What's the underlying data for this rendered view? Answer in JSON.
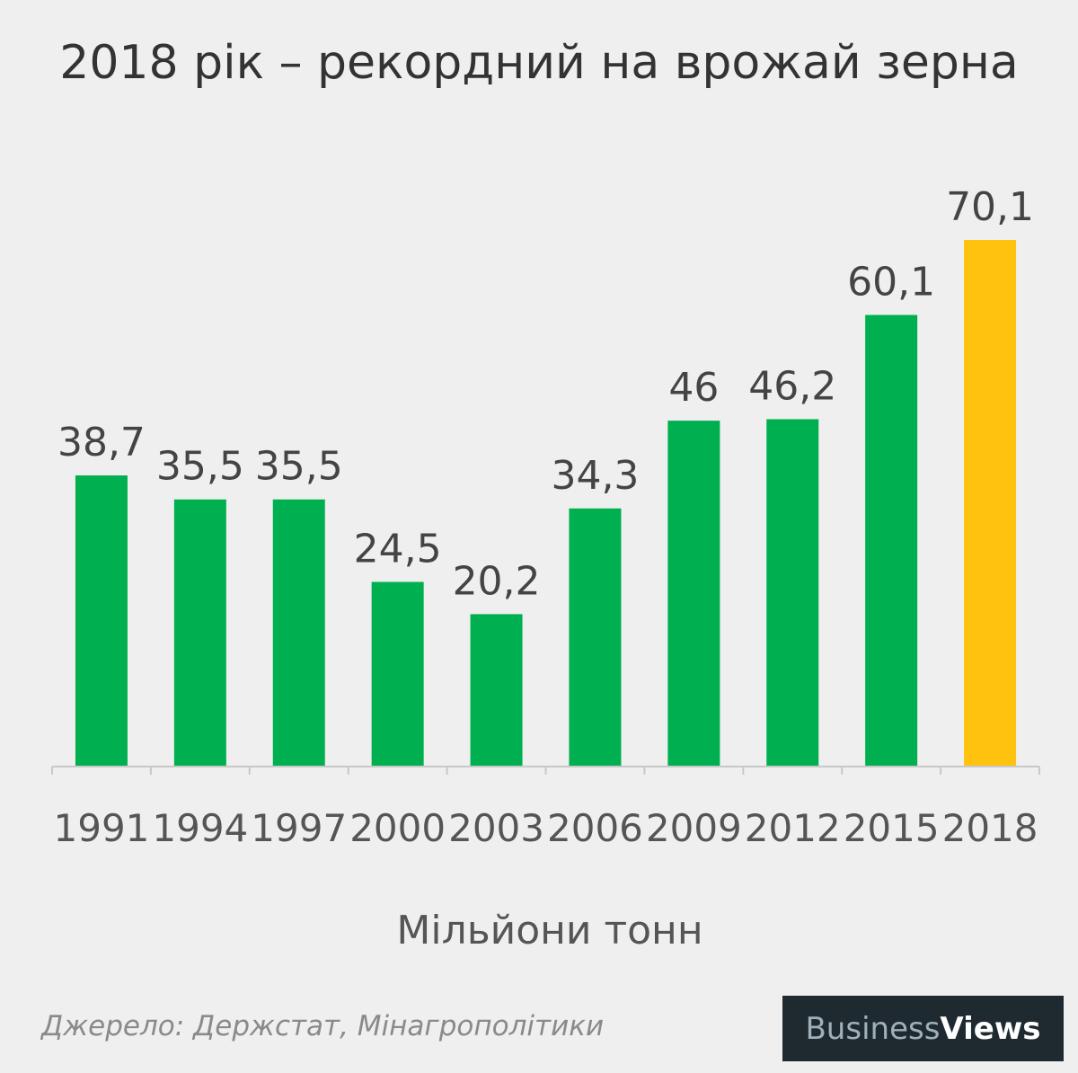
{
  "chart_data": {
    "type": "bar",
    "title": "2018 рік – рекордний на врожай зерна",
    "categories": [
      "1991",
      "1994",
      "1997",
      "2000",
      "2003",
      "2006",
      "2009",
      "2012",
      "2015",
      "2018"
    ],
    "values": [
      38.7,
      35.5,
      35.5,
      24.5,
      20.2,
      34.3,
      46,
      46.2,
      60.1,
      70.1
    ],
    "value_labels": [
      "38,7",
      "35,5",
      "35,5",
      "24,5",
      "20,2",
      "34,3",
      "46",
      "46,2",
      "60,1",
      "70,1"
    ],
    "unit_label": "Мільйони тонн",
    "ylim": [
      0,
      70.1
    ],
    "grid": false,
    "colors": {
      "bar": "#00b050",
      "highlight_bar": "#ffc20e",
      "axis": "#c8c8c8",
      "label": "#444444"
    },
    "highlight_category": "2018"
  },
  "source": "Джерело: Держстат, Мінагрополітики",
  "brand": {
    "part1": "Business",
    "part2": "Views"
  }
}
